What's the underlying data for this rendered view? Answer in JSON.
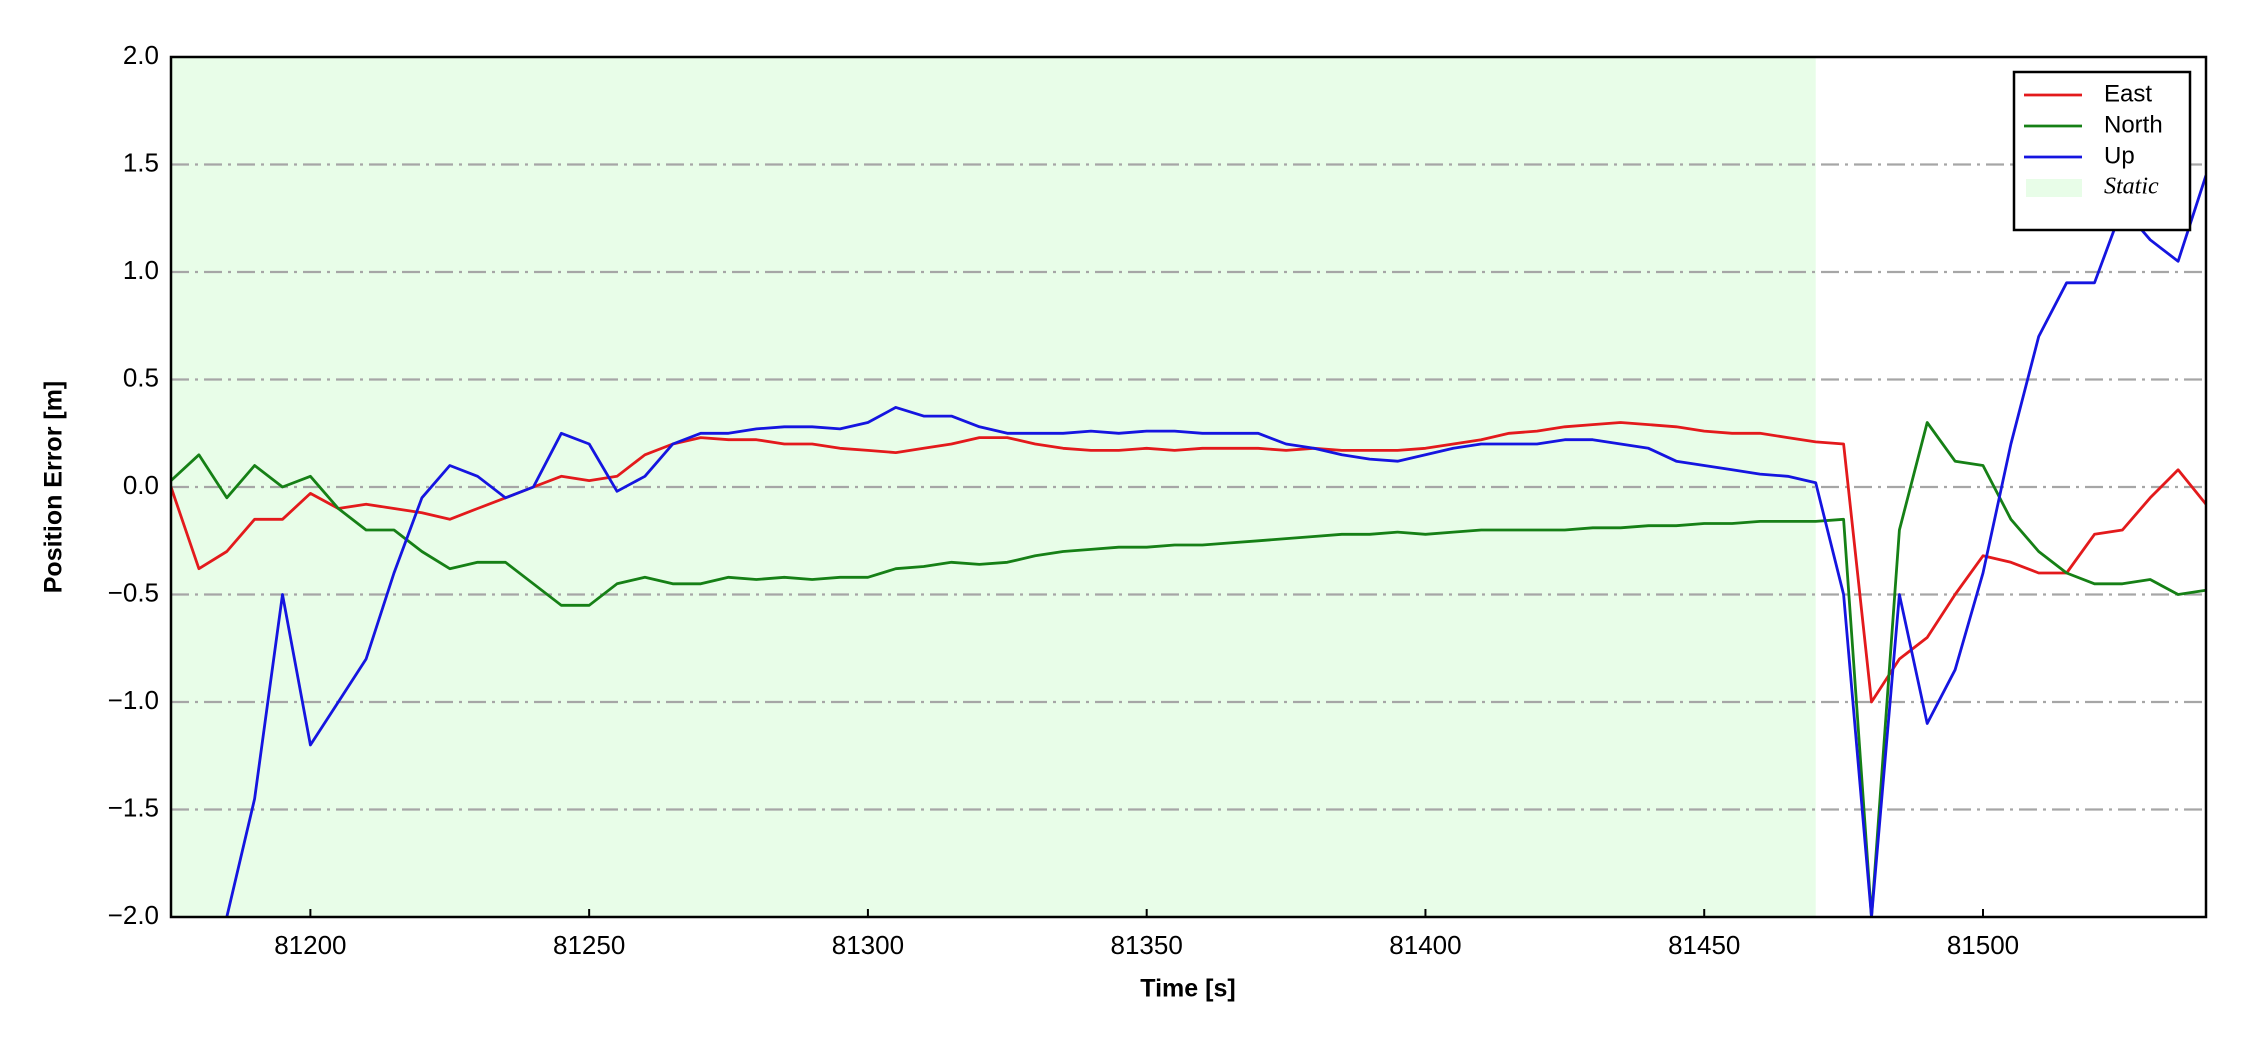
{
  "chart_data": {
    "type": "line",
    "xlabel": "Time [s]",
    "ylabel": "Position Error [m]",
    "x": [
      81175,
      81180,
      81185,
      81190,
      81195,
      81200,
      81205,
      81210,
      81215,
      81220,
      81225,
      81230,
      81235,
      81240,
      81245,
      81250,
      81255,
      81260,
      81265,
      81270,
      81275,
      81280,
      81285,
      81290,
      81295,
      81300,
      81305,
      81310,
      81315,
      81320,
      81325,
      81330,
      81335,
      81340,
      81345,
      81350,
      81355,
      81360,
      81365,
      81370,
      81375,
      81380,
      81385,
      81390,
      81395,
      81400,
      81405,
      81410,
      81415,
      81420,
      81425,
      81430,
      81435,
      81440,
      81445,
      81450,
      81455,
      81460,
      81465,
      81470,
      81475,
      81480,
      81485,
      81490,
      81495,
      81500,
      81505,
      81510,
      81515,
      81520,
      81525,
      81530,
      81535,
      81540
    ],
    "series": [
      {
        "name": "East",
        "color": "#e31a1c",
        "values": [
          0.0,
          -0.38,
          -0.3,
          -0.15,
          -0.15,
          -0.03,
          -0.1,
          -0.08,
          -0.1,
          -0.12,
          -0.15,
          -0.1,
          -0.05,
          0.0,
          0.05,
          0.03,
          0.05,
          0.15,
          0.2,
          0.23,
          0.22,
          0.22,
          0.2,
          0.2,
          0.18,
          0.17,
          0.16,
          0.18,
          0.2,
          0.23,
          0.23,
          0.2,
          0.18,
          0.17,
          0.17,
          0.18,
          0.17,
          0.18,
          0.18,
          0.18,
          0.17,
          0.18,
          0.17,
          0.17,
          0.17,
          0.18,
          0.2,
          0.22,
          0.25,
          0.26,
          0.28,
          0.29,
          0.3,
          0.29,
          0.28,
          0.26,
          0.25,
          0.25,
          0.23,
          0.21,
          0.2,
          -1.0,
          -0.8,
          -0.7,
          -0.5,
          -0.32,
          -0.35,
          -0.4,
          -0.4,
          -0.22,
          -0.2,
          -0.05,
          0.08,
          -0.08
        ]
      },
      {
        "name": "North",
        "color": "#168016",
        "values": [
          0.03,
          0.15,
          -0.05,
          0.1,
          0.0,
          0.05,
          -0.1,
          -0.2,
          -0.2,
          -0.3,
          -0.38,
          -0.35,
          -0.35,
          -0.45,
          -0.55,
          -0.55,
          -0.45,
          -0.42,
          -0.45,
          -0.45,
          -0.42,
          -0.43,
          -0.42,
          -0.43,
          -0.42,
          -0.42,
          -0.38,
          -0.37,
          -0.35,
          -0.36,
          -0.35,
          -0.32,
          -0.3,
          -0.29,
          -0.28,
          -0.28,
          -0.27,
          -0.27,
          -0.26,
          -0.25,
          -0.24,
          -0.23,
          -0.22,
          -0.22,
          -0.21,
          -0.22,
          -0.21,
          -0.2,
          -0.2,
          -0.2,
          -0.2,
          -0.19,
          -0.19,
          -0.18,
          -0.18,
          -0.17,
          -0.17,
          -0.16,
          -0.16,
          -0.16,
          -0.15,
          -2.0,
          -0.2,
          0.3,
          0.12,
          0.1,
          -0.15,
          -0.3,
          -0.4,
          -0.45,
          -0.45,
          -0.43,
          -0.5,
          -0.48
        ]
      },
      {
        "name": "Up",
        "color": "#1515e0",
        "values": [
          null,
          null,
          -2.0,
          -1.45,
          -0.5,
          -1.2,
          -1.0,
          -0.8,
          -0.4,
          -0.05,
          0.1,
          0.05,
          -0.05,
          0.0,
          0.25,
          0.2,
          -0.02,
          0.05,
          0.2,
          0.25,
          0.25,
          0.27,
          0.28,
          0.28,
          0.27,
          0.3,
          0.37,
          0.33,
          0.33,
          0.28,
          0.25,
          0.25,
          0.25,
          0.26,
          0.25,
          0.26,
          0.26,
          0.25,
          0.25,
          0.25,
          0.2,
          0.18,
          0.15,
          0.13,
          0.12,
          0.15,
          0.18,
          0.2,
          0.2,
          0.2,
          0.22,
          0.22,
          0.2,
          0.18,
          0.12,
          0.1,
          0.08,
          0.06,
          0.05,
          0.02,
          -0.5,
          -2.0,
          -0.5,
          -1.1,
          -0.85,
          -0.4,
          0.2,
          0.7,
          0.95,
          0.95,
          1.3,
          1.15,
          1.05,
          1.45
        ]
      }
    ],
    "shaded_region": {
      "name": "Static",
      "x": [
        81175,
        81470
      ],
      "color": "#e8fde8"
    },
    "xlim": [
      81175,
      81540
    ],
    "xticks": [
      81200,
      81250,
      81300,
      81350,
      81400,
      81450,
      81500
    ],
    "ylim": [
      -2,
      2
    ],
    "yticks": [
      {
        "value": -2,
        "label": "−2.0"
      },
      {
        "value": -1.5,
        "label": "−1.5"
      },
      {
        "value": -1,
        "label": "−1.0"
      },
      {
        "value": -0.5,
        "label": "−0.5"
      },
      {
        "value": 0,
        "label": "0.0"
      },
      {
        "value": 0.5,
        "label": "0.5"
      },
      {
        "value": 1,
        "label": "1.0"
      },
      {
        "value": 1.5,
        "label": "1.5"
      },
      {
        "value": 2,
        "label": "2.0"
      }
    ],
    "grid": "y",
    "legend": "upper right"
  }
}
